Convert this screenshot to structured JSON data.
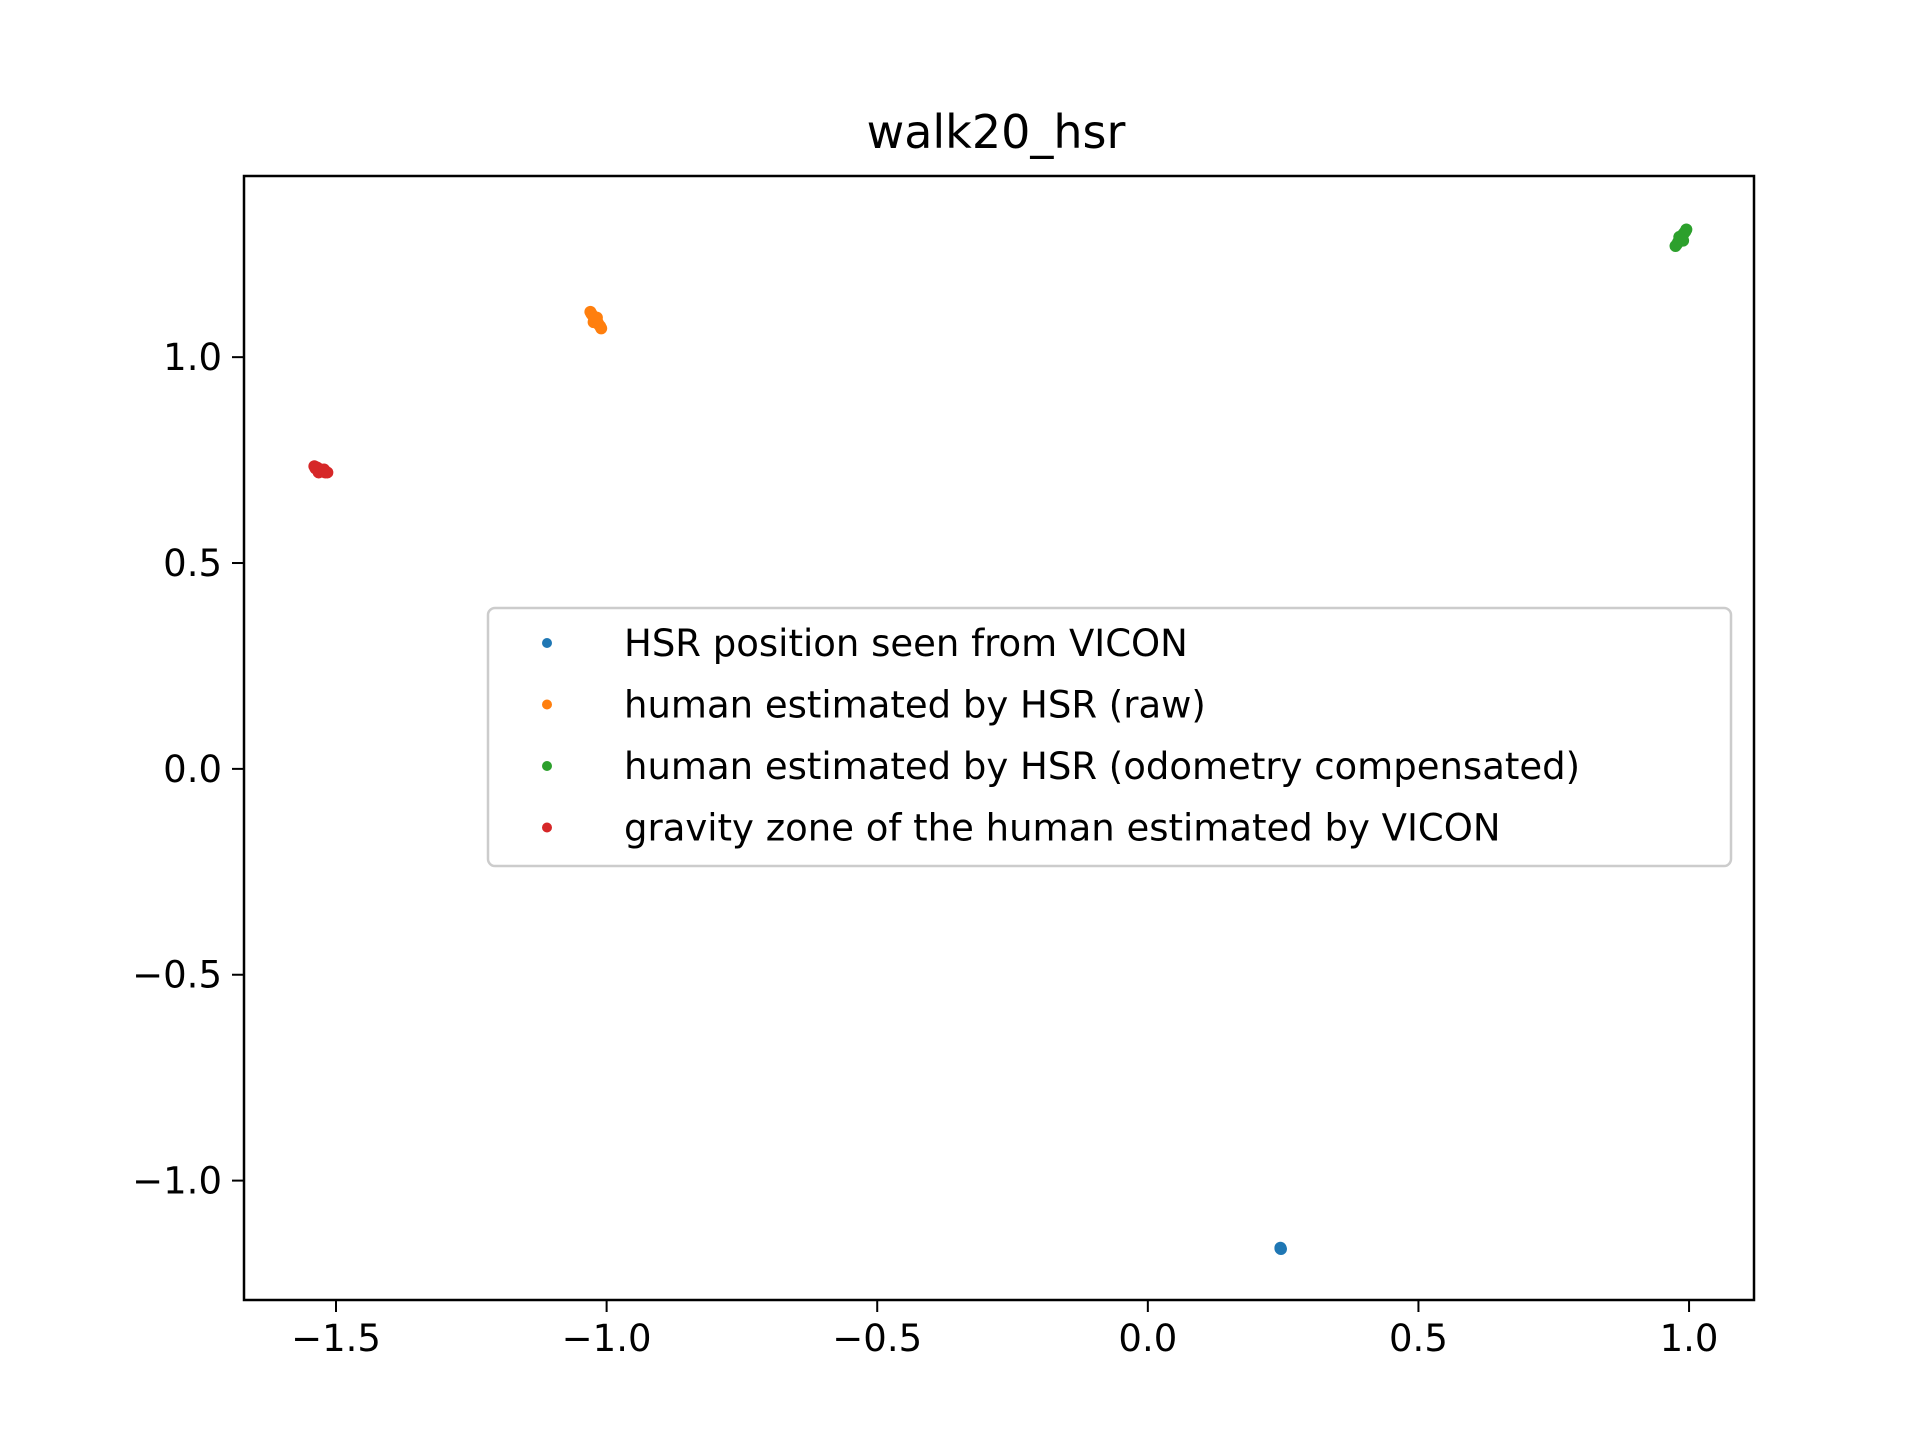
{
  "chart_data": {
    "type": "scatter",
    "title": "walk20_hsr",
    "xlabel": "",
    "ylabel": "",
    "xlim": [
      -1.67,
      1.12
    ],
    "ylim": [
      -1.29,
      1.44
    ],
    "xticks": [
      -1.5,
      -1.0,
      -0.5,
      0.0,
      0.5,
      1.0
    ],
    "xtick_labels": [
      "−1.5",
      "−1.0",
      "−0.5",
      "0.0",
      "0.5",
      "1.0"
    ],
    "yticks": [
      -1.0,
      -0.5,
      0.0,
      0.5,
      1.0
    ],
    "ytick_labels": [
      "−1.0",
      "−0.5",
      "0.0",
      "0.5",
      "1.0"
    ],
    "grid": false,
    "legend": {
      "placement": "center-right"
    },
    "series": [
      {
        "name": "HSR position seen from VICON",
        "color": "#1f77b4",
        "points": [
          [
            0.245,
            -1.165
          ],
          [
            0.245,
            -1.163
          ],
          [
            0.246,
            -1.166
          ]
        ]
      },
      {
        "name": "human estimated by HSR (raw)",
        "color": "#ff7f0e",
        "points": [
          [
            -1.03,
            1.11
          ],
          [
            -1.028,
            1.105
          ],
          [
            -1.025,
            1.1
          ],
          [
            -1.022,
            1.095
          ],
          [
            -1.02,
            1.09
          ],
          [
            -1.017,
            1.085
          ],
          [
            -1.015,
            1.08
          ],
          [
            -1.012,
            1.075
          ],
          [
            -1.01,
            1.07
          ],
          [
            -1.024,
            1.085
          ],
          [
            -1.018,
            1.096
          ]
        ]
      },
      {
        "name": "human estimated by HSR (odometry compensated)",
        "color": "#2ca02c",
        "points": [
          [
            0.975,
            1.27
          ],
          [
            0.978,
            1.275
          ],
          [
            0.98,
            1.28
          ],
          [
            0.983,
            1.285
          ],
          [
            0.985,
            1.29
          ],
          [
            0.988,
            1.295
          ],
          [
            0.99,
            1.3
          ],
          [
            0.993,
            1.305
          ],
          [
            0.995,
            1.31
          ],
          [
            0.982,
            1.292
          ],
          [
            0.989,
            1.283
          ]
        ]
      },
      {
        "name": "gravity zone of the human estimated by VICON",
        "color": "#d62728",
        "points": [
          [
            -1.54,
            0.735
          ],
          [
            -1.535,
            0.732
          ],
          [
            -1.53,
            0.728
          ],
          [
            -1.527,
            0.725
          ],
          [
            -1.524,
            0.722
          ],
          [
            -1.52,
            0.72
          ],
          [
            -1.532,
            0.72
          ],
          [
            -1.538,
            0.73
          ],
          [
            -1.522,
            0.727
          ],
          [
            -1.516,
            0.72
          ]
        ]
      }
    ]
  }
}
